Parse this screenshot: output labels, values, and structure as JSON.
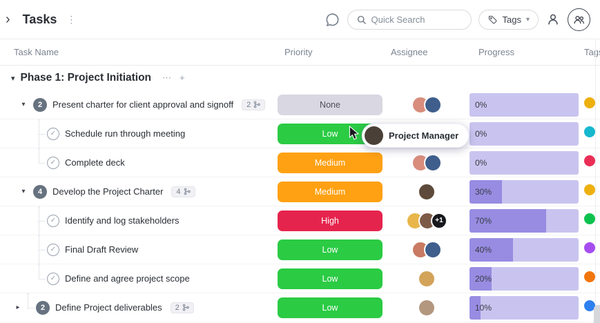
{
  "icons": {
    "sidebar_open": "›",
    "kebab": "⋮",
    "caret_down_small": "▾",
    "twisty_open": "▾",
    "twisty_closed": "▸",
    "check": "✓",
    "ellipsis": "⋯",
    "plus": "+"
  },
  "topbar": {
    "title": "Tasks",
    "search_placeholder": "Quick Search",
    "tags_label": "Tags"
  },
  "columns": {
    "task_name": "Task Name",
    "priority": "Priority",
    "assignee": "Assignee",
    "progress": "Progress",
    "tags": "Tags"
  },
  "group": {
    "title": "Phase 1: Project Initiation"
  },
  "tooltip": {
    "label": "Project Manager",
    "avatar_color": "#4a4038"
  },
  "colors": {
    "progress_track": "#c9c4ef",
    "progress_fill": "#978ce2",
    "accent": "#7b68ee"
  },
  "rows": [
    {
      "type": "parent",
      "count": "2",
      "name": "Present charter for client approval and signoff",
      "badge": "2",
      "priority": "None",
      "priority_color": "#d9d7e2",
      "priority_fg": "#4c4f57",
      "avatars": [
        "#d98d7c",
        "#3f5e8c"
      ],
      "progress": 0,
      "progress_label": "0%",
      "tag_color": "#edb00e"
    },
    {
      "type": "subtask",
      "name": "Schedule run through meeting",
      "priority": "Low",
      "priority_color": "#2bcb44",
      "priority_fg": "#ffffff",
      "avatars": [],
      "progress": 0,
      "progress_label": "0%",
      "tag_color": "#16b8cd"
    },
    {
      "type": "subtask",
      "name": "Complete deck",
      "priority": "Medium",
      "priority_color": "#ffa113",
      "priority_fg": "#ffffff",
      "avatars": [
        "#d98d7c",
        "#3f5e8c"
      ],
      "progress": 0,
      "progress_label": "0%",
      "tag_color": "#ea2e55"
    },
    {
      "type": "parent",
      "count": "4",
      "name": "Develop the Project Charter",
      "badge": "4",
      "priority": "Medium",
      "priority_color": "#ffa113",
      "priority_fg": "#ffffff",
      "avatars": [
        "#5d4a3a"
      ],
      "progress": 30,
      "progress_label": "30%",
      "tag_color": "#edb00e"
    },
    {
      "type": "subtask",
      "name": "Identify and log stakeholders",
      "priority": "High",
      "priority_color": "#e5244d",
      "priority_fg": "#ffffff",
      "avatars": [
        "#e8b64a",
        "#7c5a48"
      ],
      "extra": "+1",
      "progress": 70,
      "progress_label": "70%",
      "tag_color": "#0cc24e"
    },
    {
      "type": "subtask",
      "name": "Final Draft Review",
      "priority": "Low",
      "priority_color": "#2bcb44",
      "priority_fg": "#ffffff",
      "avatars": [
        "#c97b63",
        "#3f5e8c"
      ],
      "progress": 40,
      "progress_label": "40%",
      "tag_color": "#a64df0"
    },
    {
      "type": "subtask",
      "name": "Define and agree project scope",
      "priority": "Low",
      "priority_color": "#2bcb44",
      "priority_fg": "#ffffff",
      "avatars": [
        "#d3a35a"
      ],
      "progress": 20,
      "progress_label": "20%",
      "tag_color": "#f2750c"
    },
    {
      "type": "parent",
      "count": "2",
      "name": "Define Project deliverables",
      "badge": "2",
      "priority": "Low",
      "priority_color": "#2bcb44",
      "priority_fg": "#ffffff",
      "avatars": [
        "#b3977f"
      ],
      "progress": 10,
      "progress_label": "10%",
      "tag_color": "#2e80f0"
    }
  ]
}
